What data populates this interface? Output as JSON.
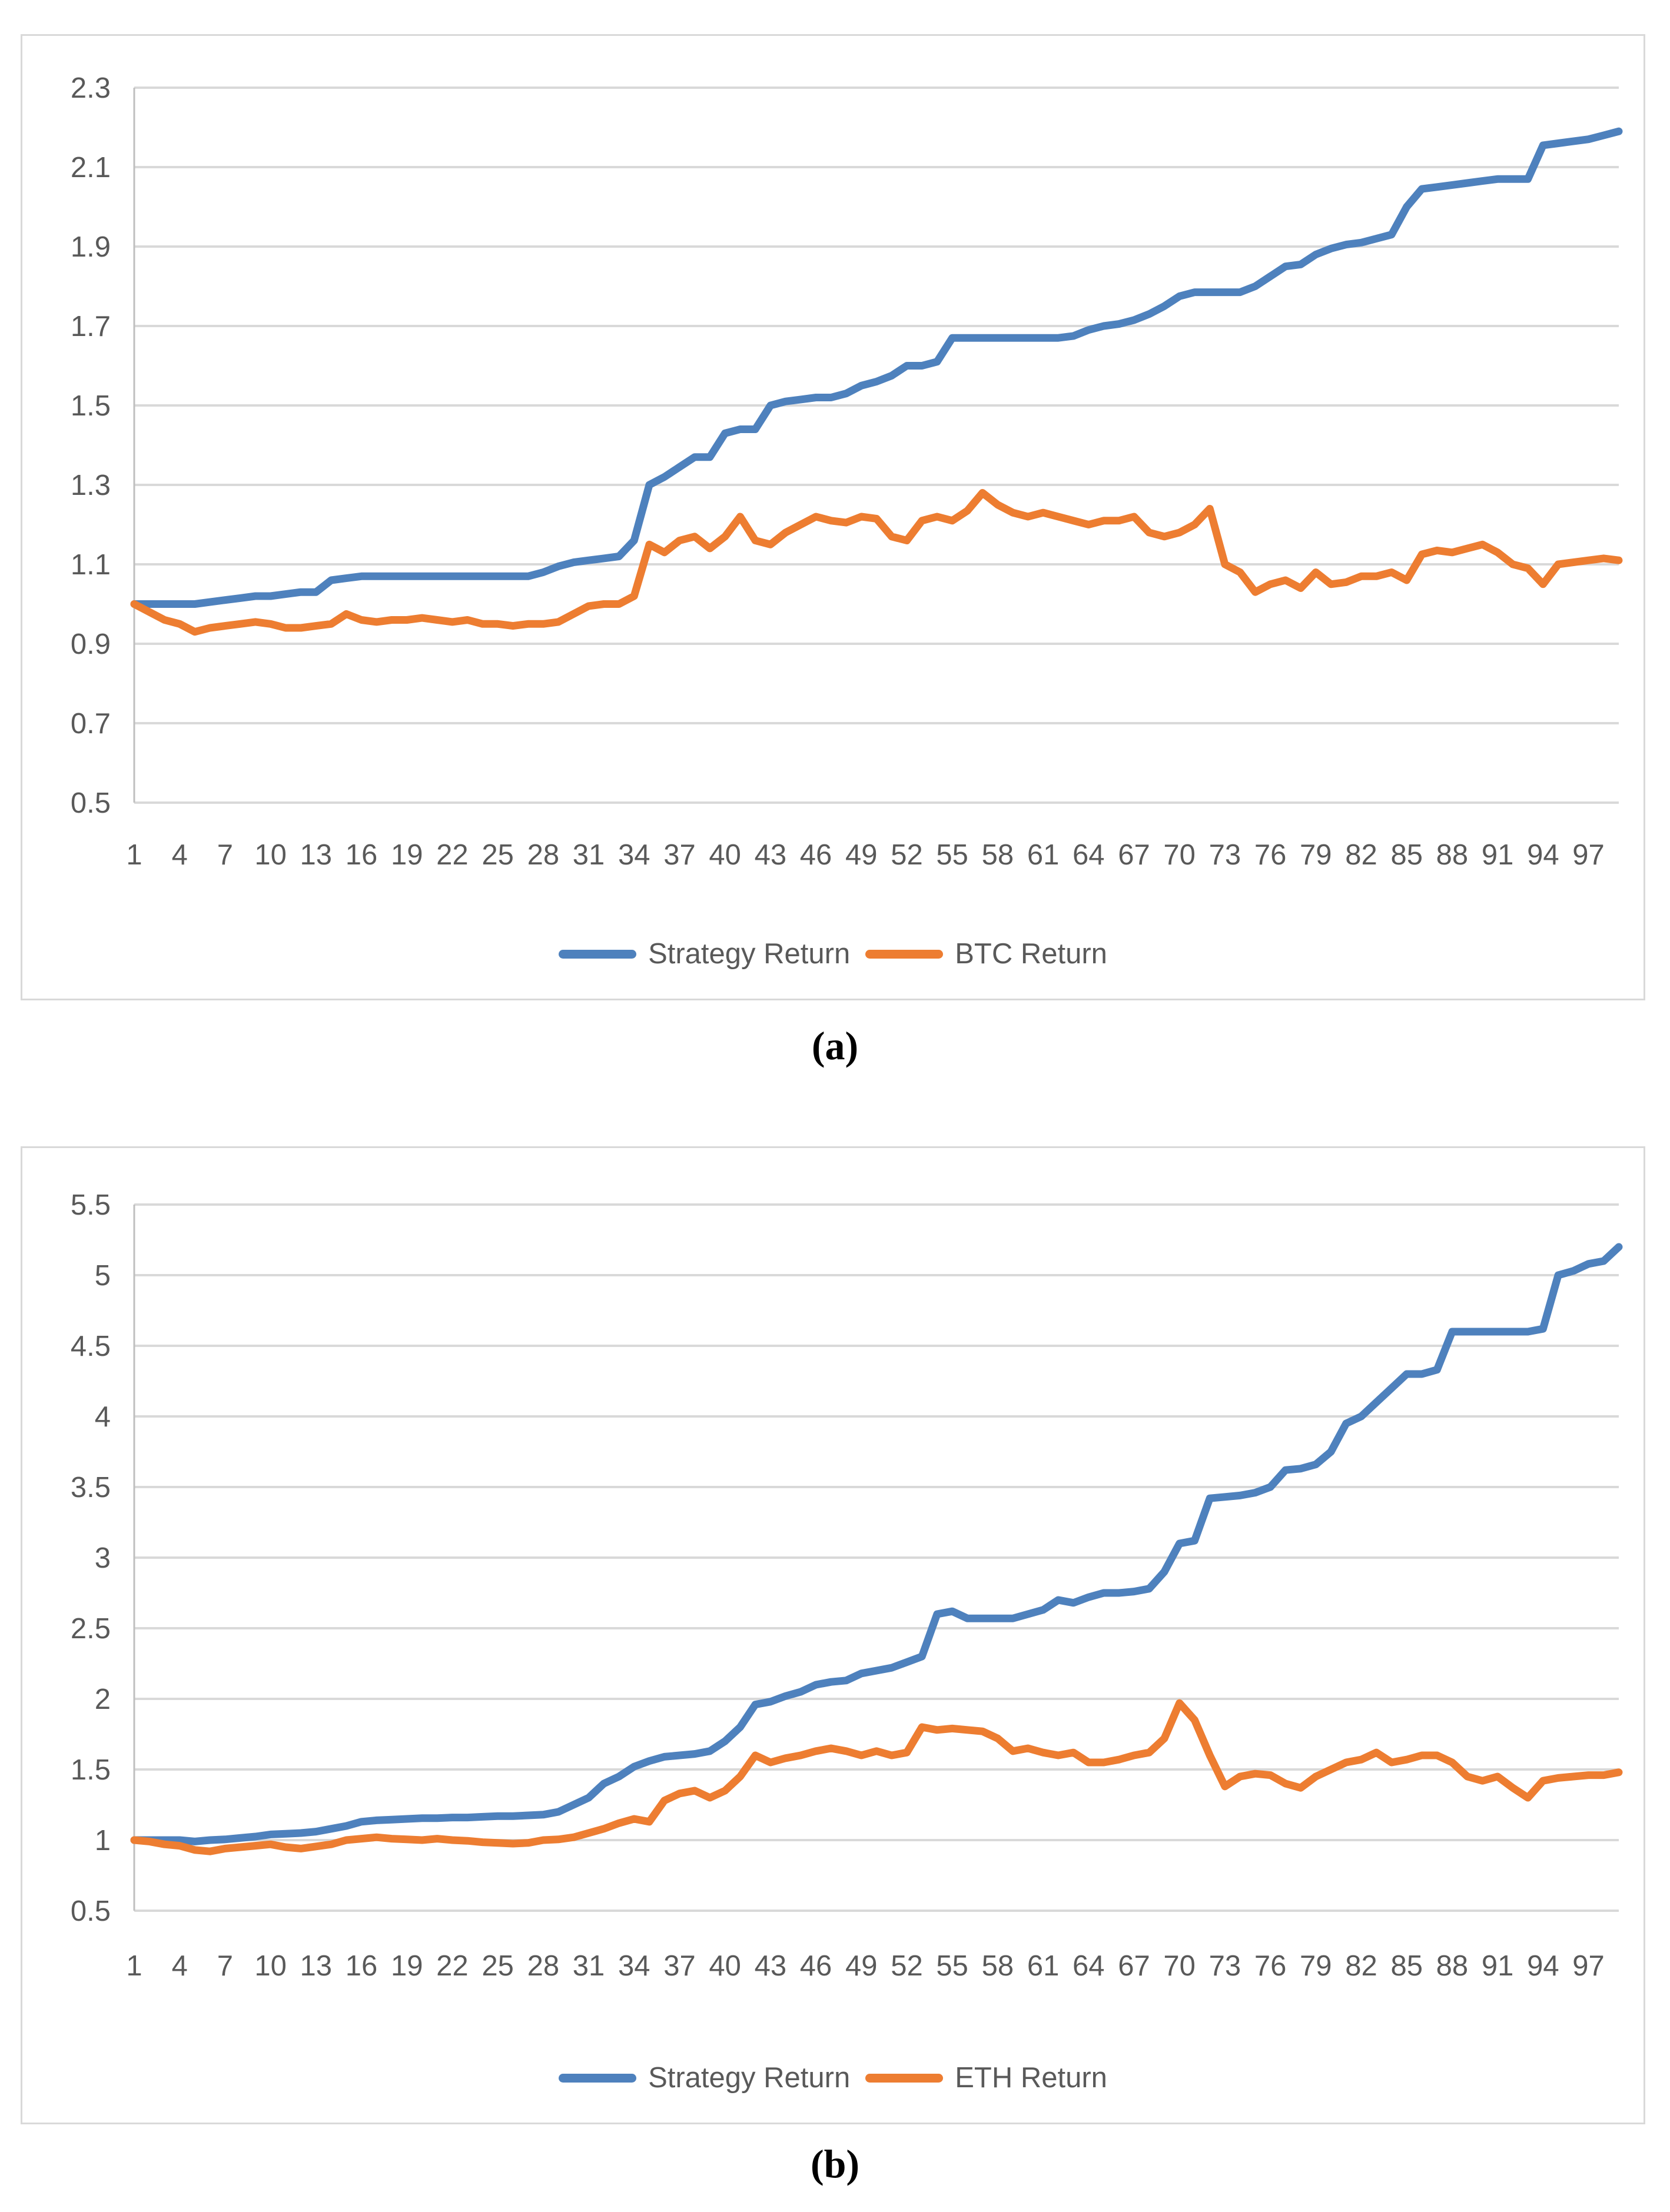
{
  "page": {
    "background": "#ffffff"
  },
  "theme": {
    "gridline_color": "#d9d9d9",
    "axis_line_color": "#bfbfbf",
    "tick_text_color": "#595959",
    "panel_border_color": "#d9d9d9",
    "strategy_blue": "#4e81bd",
    "benchmark_orange": "#ed7d31"
  },
  "chart_data": [
    {
      "type": "line",
      "caption": "(a)",
      "legend_position": "bottom",
      "grid": "horizontal",
      "y_axis": {
        "min": 0.5,
        "max": 2.3,
        "tick_labels": [
          "0.5",
          "0.7",
          "0.9",
          "1.1",
          "1.3",
          "1.5",
          "1.7",
          "1.9",
          "2.1",
          "2.3"
        ]
      },
      "x_axis": {
        "tick_values": [
          1,
          4,
          7,
          10,
          13,
          16,
          19,
          22,
          25,
          28,
          31,
          34,
          37,
          40,
          43,
          46,
          49,
          52,
          55,
          58,
          61,
          64,
          67,
          70,
          73,
          76,
          79,
          82,
          85,
          88,
          91,
          94,
          97
        ]
      },
      "series": [
        {
          "name": "Strategy Return",
          "color": "#4e81bd",
          "values": [
            1.0,
            1.0,
            1.0,
            1.0,
            1.0,
            1.005,
            1.01,
            1.015,
            1.02,
            1.02,
            1.025,
            1.03,
            1.03,
            1.06,
            1.065,
            1.07,
            1.07,
            1.07,
            1.07,
            1.07,
            1.07,
            1.07,
            1.07,
            1.07,
            1.07,
            1.07,
            1.07,
            1.08,
            1.095,
            1.105,
            1.11,
            1.115,
            1.12,
            1.16,
            1.3,
            1.32,
            1.345,
            1.37,
            1.37,
            1.43,
            1.44,
            1.44,
            1.5,
            1.51,
            1.515,
            1.52,
            1.52,
            1.53,
            1.55,
            1.56,
            1.575,
            1.6,
            1.6,
            1.61,
            1.67,
            1.67,
            1.67,
            1.67,
            1.67,
            1.67,
            1.67,
            1.67,
            1.675,
            1.69,
            1.7,
            1.705,
            1.715,
            1.73,
            1.75,
            1.775,
            1.785,
            1.785,
            1.785,
            1.785,
            1.8,
            1.825,
            1.85,
            1.855,
            1.88,
            1.895,
            1.905,
            1.91,
            1.92,
            1.93,
            2.0,
            2.045,
            2.05,
            2.055,
            2.06,
            2.065,
            2.07,
            2.07,
            2.07,
            2.155,
            2.16,
            2.165,
            2.17,
            2.18,
            2.19
          ]
        },
        {
          "name": "BTC Return",
          "color": "#ed7d31",
          "values": [
            1.0,
            0.98,
            0.96,
            0.95,
            0.93,
            0.94,
            0.945,
            0.95,
            0.955,
            0.95,
            0.94,
            0.94,
            0.945,
            0.95,
            0.975,
            0.96,
            0.955,
            0.96,
            0.96,
            0.965,
            0.96,
            0.955,
            0.96,
            0.95,
            0.95,
            0.945,
            0.95,
            0.95,
            0.955,
            0.975,
            0.995,
            1.0,
            1.0,
            1.02,
            1.15,
            1.13,
            1.16,
            1.17,
            1.14,
            1.17,
            1.22,
            1.16,
            1.15,
            1.18,
            1.2,
            1.22,
            1.21,
            1.205,
            1.22,
            1.215,
            1.17,
            1.16,
            1.21,
            1.22,
            1.21,
            1.235,
            1.28,
            1.25,
            1.23,
            1.22,
            1.23,
            1.22,
            1.21,
            1.2,
            1.21,
            1.21,
            1.22,
            1.18,
            1.17,
            1.18,
            1.2,
            1.24,
            1.1,
            1.08,
            1.03,
            1.05,
            1.06,
            1.04,
            1.08,
            1.05,
            1.055,
            1.07,
            1.07,
            1.08,
            1.06,
            1.125,
            1.135,
            1.13,
            1.14,
            1.15,
            1.13,
            1.1,
            1.09,
            1.05,
            1.1,
            1.105,
            1.11,
            1.115,
            1.11
          ]
        }
      ]
    },
    {
      "type": "line",
      "caption": "(b)",
      "legend_position": "bottom",
      "grid": "horizontal",
      "y_axis": {
        "min": 0.5,
        "max": 5.5,
        "tick_labels": [
          "0.5",
          "1",
          "1.5",
          "2",
          "2.5",
          "3",
          "3.5",
          "4",
          "4.5",
          "5",
          "5.5"
        ]
      },
      "x_axis": {
        "tick_values": [
          1,
          4,
          7,
          10,
          13,
          16,
          19,
          22,
          25,
          28,
          31,
          34,
          37,
          40,
          43,
          46,
          49,
          52,
          55,
          58,
          61,
          64,
          67,
          70,
          73,
          76,
          79,
          82,
          85,
          88,
          91,
          94,
          97
        ]
      },
      "series": [
        {
          "name": "Strategy Return",
          "color": "#4e81bd",
          "values": [
            1.0,
            1.0,
            1.0,
            1.0,
            0.99,
            1.0,
            1.005,
            1.015,
            1.025,
            1.04,
            1.045,
            1.05,
            1.06,
            1.08,
            1.1,
            1.13,
            1.14,
            1.145,
            1.15,
            1.155,
            1.155,
            1.16,
            1.16,
            1.165,
            1.17,
            1.17,
            1.175,
            1.18,
            1.2,
            1.25,
            1.3,
            1.4,
            1.45,
            1.52,
            1.56,
            1.59,
            1.6,
            1.61,
            1.63,
            1.7,
            1.8,
            1.96,
            1.98,
            2.02,
            2.05,
            2.1,
            2.12,
            2.13,
            2.18,
            2.2,
            2.22,
            2.26,
            2.3,
            2.6,
            2.62,
            2.57,
            2.57,
            2.57,
            2.57,
            2.6,
            2.63,
            2.7,
            2.68,
            2.72,
            2.75,
            2.75,
            2.76,
            2.78,
            2.9,
            3.1,
            3.12,
            3.42,
            3.43,
            3.44,
            3.46,
            3.5,
            3.62,
            3.63,
            3.66,
            3.75,
            3.95,
            4.0,
            4.1,
            4.2,
            4.3,
            4.3,
            4.33,
            4.6,
            4.6,
            4.6,
            4.6,
            4.6,
            4.6,
            4.62,
            5.0,
            5.03,
            5.08,
            5.1,
            5.2
          ]
        },
        {
          "name": "ETH Return",
          "color": "#ed7d31",
          "values": [
            1.0,
            0.99,
            0.97,
            0.96,
            0.93,
            0.92,
            0.94,
            0.95,
            0.96,
            0.97,
            0.95,
            0.94,
            0.955,
            0.97,
            1.0,
            1.01,
            1.02,
            1.01,
            1.005,
            1.0,
            1.01,
            1.0,
            0.995,
            0.985,
            0.98,
            0.975,
            0.98,
            1.0,
            1.005,
            1.02,
            1.05,
            1.08,
            1.12,
            1.15,
            1.13,
            1.28,
            1.33,
            1.35,
            1.3,
            1.35,
            1.45,
            1.6,
            1.55,
            1.58,
            1.6,
            1.63,
            1.65,
            1.63,
            1.6,
            1.63,
            1.6,
            1.62,
            1.8,
            1.78,
            1.79,
            1.78,
            1.77,
            1.72,
            1.63,
            1.65,
            1.62,
            1.6,
            1.62,
            1.55,
            1.55,
            1.57,
            1.6,
            1.62,
            1.72,
            1.97,
            1.85,
            1.6,
            1.38,
            1.45,
            1.47,
            1.46,
            1.4,
            1.37,
            1.45,
            1.5,
            1.55,
            1.57,
            1.62,
            1.55,
            1.57,
            1.6,
            1.6,
            1.55,
            1.45,
            1.42,
            1.45,
            1.37,
            1.3,
            1.42,
            1.44,
            1.45,
            1.46,
            1.46,
            1.48
          ]
        }
      ]
    }
  ]
}
